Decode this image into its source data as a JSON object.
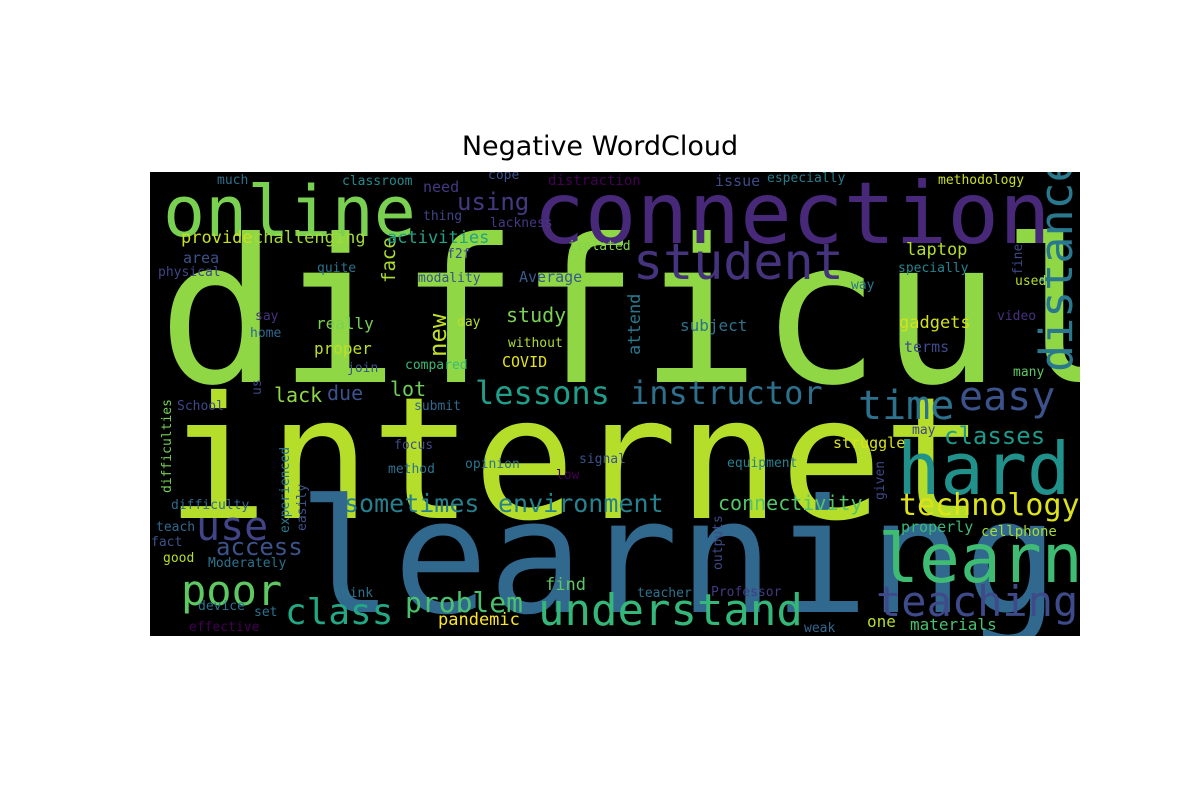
{
  "chart_data": {
    "type": "wordcloud",
    "title": "Negative WordCloud",
    "background": "#000000",
    "colormap": "viridis",
    "words": [
      {
        "text": "difficult",
        "weight": 1.0,
        "color": "#8fd744"
      },
      {
        "text": "internet",
        "weight": 0.9,
        "color": "#b5de2b"
      },
      {
        "text": "learning",
        "weight": 0.82,
        "color": "#31688e"
      },
      {
        "text": "connection",
        "weight": 0.52,
        "color": "#482878"
      },
      {
        "text": "online",
        "weight": 0.42,
        "color": "#7ad151"
      },
      {
        "text": "hard",
        "weight": 0.42,
        "color": "#21918c"
      },
      {
        "text": "learn",
        "weight": 0.4,
        "color": "#3fbc73"
      },
      {
        "text": "student",
        "weight": 0.3,
        "color": "#46337e"
      },
      {
        "text": "distance",
        "weight": 0.28,
        "color": "#2a788e"
      },
      {
        "text": "understand",
        "weight": 0.26,
        "color": "#35b779"
      },
      {
        "text": "poor",
        "weight": 0.26,
        "color": "#5ec962"
      },
      {
        "text": "teaching",
        "weight": 0.26,
        "color": "#3e4a89"
      },
      {
        "text": "use",
        "weight": 0.25,
        "color": "#414487"
      },
      {
        "text": "time",
        "weight": 0.24,
        "color": "#2c728e"
      },
      {
        "text": "easy",
        "weight": 0.24,
        "color": "#3b528b"
      },
      {
        "text": "class",
        "weight": 0.22,
        "color": "#22a884"
      },
      {
        "text": "lessons",
        "weight": 0.2,
        "color": "#1f9e89"
      },
      {
        "text": "instructor",
        "weight": 0.2,
        "color": "#2d708e"
      },
      {
        "text": "technology",
        "weight": 0.19,
        "color": "#dde318"
      },
      {
        "text": "problem",
        "weight": 0.18,
        "color": "#4ac16d"
      },
      {
        "text": "sometimes",
        "weight": 0.16,
        "color": "#277f8e"
      },
      {
        "text": "environment",
        "weight": 0.16,
        "color": "#26828e"
      },
      {
        "text": "access",
        "weight": 0.15,
        "color": "#3b528b"
      },
      {
        "text": "classes",
        "weight": 0.15,
        "color": "#1f998a"
      },
      {
        "text": "connectivity",
        "weight": 0.14,
        "color": "#52c569"
      },
      {
        "text": "using",
        "weight": 0.13,
        "color": "#443a83"
      },
      {
        "text": "new",
        "weight": 0.13,
        "color": "#c0df25"
      },
      {
        "text": "study",
        "weight": 0.12,
        "color": "#7ad151"
      },
      {
        "text": "lack",
        "weight": 0.12,
        "color": "#90d743"
      },
      {
        "text": "lot",
        "weight": 0.11,
        "color": "#6ece58"
      },
      {
        "text": "due",
        "weight": 0.11,
        "color": "#3b528b"
      },
      {
        "text": "face",
        "weight": 0.11,
        "color": "#addc30"
      },
      {
        "text": "laptop",
        "weight": 0.1,
        "color": "#b5de2b"
      },
      {
        "text": "gadgets",
        "weight": 0.1,
        "color": "#d2e21b"
      },
      {
        "text": "attend",
        "weight": 0.1,
        "color": "#2a788e"
      },
      {
        "text": "activities",
        "weight": 0.1,
        "color": "#20a386"
      },
      {
        "text": "challenging",
        "weight": 0.1,
        "color": "#a2da37"
      },
      {
        "text": "provide",
        "weight": 0.1,
        "color": "#c8e020"
      },
      {
        "text": "find",
        "weight": 0.1,
        "color": "#5ec962"
      },
      {
        "text": "pandemic",
        "weight": 0.1,
        "color": "#fde725"
      },
      {
        "text": "materials",
        "weight": 0.09,
        "color": "#4ac16d"
      },
      {
        "text": "really",
        "weight": 0.09,
        "color": "#7ad151"
      },
      {
        "text": "proper",
        "weight": 0.09,
        "color": "#bddf26"
      },
      {
        "text": "subject",
        "weight": 0.09,
        "color": "#2c728e"
      },
      {
        "text": "properly",
        "weight": 0.09,
        "color": "#3aba76"
      },
      {
        "text": "terms",
        "weight": 0.09,
        "color": "#3e4a89"
      },
      {
        "text": "struggle",
        "weight": 0.08,
        "color": "#d8e219"
      },
      {
        "text": "cellphone",
        "weight": 0.08,
        "color": "#a5db36"
      },
      {
        "text": "one",
        "weight": 0.08,
        "color": "#b8de29"
      },
      {
        "text": "COVID",
        "weight": 0.08,
        "color": "#e5e419"
      },
      {
        "text": "Average",
        "weight": 0.08,
        "color": "#38598c"
      },
      {
        "text": "area",
        "weight": 0.08,
        "color": "#3b528b"
      },
      {
        "text": "need",
        "weight": 0.08,
        "color": "#443983"
      },
      {
        "text": "issue",
        "weight": 0.08,
        "color": "#3e4989"
      },
      {
        "text": "methodology",
        "weight": 0.07,
        "color": "#c8e020"
      },
      {
        "text": "distraction",
        "weight": 0.07,
        "color": "#440154"
      },
      {
        "text": "classroom",
        "weight": 0.07,
        "color": "#238a8d"
      },
      {
        "text": "especially",
        "weight": 0.07,
        "color": "#287c8e"
      },
      {
        "text": "much",
        "weight": 0.07,
        "color": "#2d708e"
      },
      {
        "text": "cope",
        "weight": 0.07,
        "color": "#3b528b"
      },
      {
        "text": "thing",
        "weight": 0.07,
        "color": "#414487"
      },
      {
        "text": "lackness",
        "weight": 0.07,
        "color": "#443983"
      },
      {
        "text": "isolated",
        "weight": 0.07,
        "color": "#84d44b"
      },
      {
        "text": "f2f",
        "weight": 0.07,
        "color": "#3e4989"
      },
      {
        "text": "physical",
        "weight": 0.07,
        "color": "#414487"
      },
      {
        "text": "quite",
        "weight": 0.07,
        "color": "#2c728e"
      },
      {
        "text": "modality",
        "weight": 0.07,
        "color": "#3b528b"
      },
      {
        "text": "specially",
        "weight": 0.07,
        "color": "#25858e"
      },
      {
        "text": "way",
        "weight": 0.07,
        "color": "#2a788e"
      },
      {
        "text": "used",
        "weight": 0.07,
        "color": "#b5de2b"
      },
      {
        "text": "fine",
        "weight": 0.07,
        "color": "#3e4a89"
      },
      {
        "text": "say",
        "weight": 0.07,
        "color": "#46327e"
      },
      {
        "text": "home",
        "weight": 0.07,
        "color": "#31688e"
      },
      {
        "text": "day",
        "weight": 0.07,
        "color": "#b5de2b"
      },
      {
        "text": "video",
        "weight": 0.07,
        "color": "#46327e"
      },
      {
        "text": "without",
        "weight": 0.07,
        "color": "#addc30"
      },
      {
        "text": "join",
        "weight": 0.07,
        "color": "#3b528b"
      },
      {
        "text": "compared",
        "weight": 0.07,
        "color": "#3aba76"
      },
      {
        "text": "many",
        "weight": 0.07,
        "color": "#5ec962"
      },
      {
        "text": "us",
        "weight": 0.07,
        "color": "#3e4a89"
      },
      {
        "text": "School",
        "weight": 0.07,
        "color": "#3e4a89"
      },
      {
        "text": "submit",
        "weight": 0.07,
        "color": "#31688e"
      },
      {
        "text": "difficulties",
        "weight": 0.07,
        "color": "#75d054"
      },
      {
        "text": "focus",
        "weight": 0.07,
        "color": "#3e4a89"
      },
      {
        "text": "signal",
        "weight": 0.07,
        "color": "#3b528b"
      },
      {
        "text": "may",
        "weight": 0.07,
        "color": "#414487"
      },
      {
        "text": "experienced",
        "weight": 0.07,
        "color": "#2a788e"
      },
      {
        "text": "opinion",
        "weight": 0.07,
        "color": "#2c728e"
      },
      {
        "text": "method",
        "weight": 0.07,
        "color": "#2c728e"
      },
      {
        "text": "low",
        "weight": 0.07,
        "color": "#440154"
      },
      {
        "text": "equipment",
        "weight": 0.07,
        "color": "#277f8e"
      },
      {
        "text": "given",
        "weight": 0.07,
        "color": "#3e4989"
      },
      {
        "text": "difficulty",
        "weight": 0.07,
        "color": "#31688e"
      },
      {
        "text": "easily",
        "weight": 0.07,
        "color": "#3b528b"
      },
      {
        "text": "teach",
        "weight": 0.07,
        "color": "#31688e"
      },
      {
        "text": "outputs",
        "weight": 0.07,
        "color": "#3e4a89"
      },
      {
        "text": "fact",
        "weight": 0.07,
        "color": "#3b528b"
      },
      {
        "text": "good",
        "weight": 0.07,
        "color": "#b5de2b"
      },
      {
        "text": "Moderately",
        "weight": 0.07,
        "color": "#2c728e"
      },
      {
        "text": "think",
        "weight": 0.07,
        "color": "#2c728e"
      },
      {
        "text": "teacher",
        "weight": 0.07,
        "color": "#2c728e"
      },
      {
        "text": "Professor",
        "weight": 0.07,
        "color": "#443983"
      },
      {
        "text": "device",
        "weight": 0.07,
        "color": "#2c728e"
      },
      {
        "text": "set",
        "weight": 0.07,
        "color": "#2c728e"
      },
      {
        "text": "effective",
        "weight": 0.07,
        "color": "#440154"
      },
      {
        "text": "weak",
        "weight": 0.07,
        "color": "#31688e"
      }
    ]
  }
}
